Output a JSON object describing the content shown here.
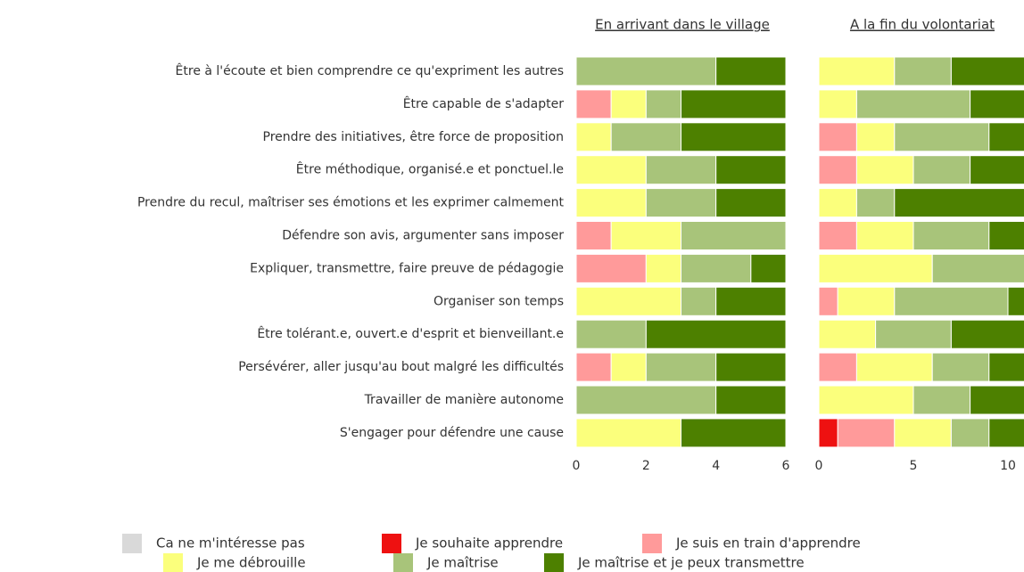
{
  "chart_data": [
    {
      "type": "bar",
      "orientation": "horizontal",
      "stacked": true,
      "title": "En arrivant dans le village",
      "categories": [
        "Être à l'écoute et bien comprendre ce qu'expriment les autres",
        "Être capable de s'adapter",
        "Prendre des initiatives, être force de proposition",
        "Être méthodique, organisé.e et ponctuel.le",
        "Prendre du recul, maîtriser ses émotions et les exprimer calmement",
        "Défendre son avis, argumenter sans imposer",
        "Expliquer, transmettre, faire preuve de pédagogie",
        "Organiser son temps",
        "Être tolérant.e, ouvert.e d'esprit et bienveillant.e",
        "Persévérer, aller jusqu'au bout malgré les difficultés",
        "Travailler de manière autonome",
        "S'engager pour défendre une cause"
      ],
      "xlim": [
        0,
        6
      ],
      "xticks": [
        0,
        2,
        4,
        6
      ],
      "series": [
        {
          "name": "Ca ne m'intéresse pas",
          "color": "#d9d9d9",
          "values": [
            0,
            0,
            0,
            0,
            0,
            0,
            0,
            0,
            0,
            0,
            0,
            0
          ]
        },
        {
          "name": "Je souhaite apprendre",
          "color": "#ee1111",
          "values": [
            0,
            0,
            0,
            0,
            0,
            0,
            0,
            0,
            0,
            0,
            0,
            0
          ]
        },
        {
          "name": "Je suis en train d'apprendre",
          "color": "#ff9a9a",
          "values": [
            0,
            1,
            0,
            0,
            0,
            1,
            2,
            0,
            0,
            1,
            0,
            0
          ]
        },
        {
          "name": "Je me débrouille",
          "color": "#fbff7c",
          "values": [
            0,
            1,
            1,
            2,
            2,
            2,
            1,
            3,
            0,
            1,
            0,
            3
          ]
        },
        {
          "name": "Je maîtrise",
          "color": "#a8c47a",
          "values": [
            4,
            1,
            2,
            2,
            2,
            3,
            2,
            1,
            2,
            2,
            4,
            0
          ]
        },
        {
          "name": "Je maîtrise et je peux transmettre",
          "color": "#4d8000",
          "values": [
            2,
            3,
            3,
            2,
            2,
            0,
            1,
            2,
            4,
            2,
            2,
            3
          ]
        }
      ]
    },
    {
      "type": "bar",
      "orientation": "horizontal",
      "stacked": true,
      "title": "A la fin du volontariat",
      "xlim": [
        0,
        11
      ],
      "xticks": [
        0,
        5,
        10
      ],
      "series": [
        {
          "color": "#d9d9d9",
          "values": [
            0,
            0,
            0,
            0,
            0,
            0,
            0,
            0,
            0,
            0,
            0,
            0
          ]
        },
        {
          "color": "#ee1111",
          "values": [
            0,
            0,
            0,
            0,
            0,
            0,
            0,
            0,
            0,
            0,
            0,
            1
          ]
        },
        {
          "color": "#ff9a9a",
          "values": [
            0,
            0,
            2,
            2,
            0,
            2,
            0,
            1,
            0,
            2,
            0,
            3
          ]
        },
        {
          "color": "#fbff7c",
          "values": [
            4,
            2,
            2,
            3,
            2,
            3,
            6,
            3,
            3,
            4,
            5,
            3
          ]
        },
        {
          "color": "#a8c47a",
          "values": [
            3,
            6,
            5,
            3,
            2,
            4,
            5,
            6,
            4,
            3,
            3,
            2
          ]
        },
        {
          "color": "#4d8000",
          "values": [
            4,
            3,
            2,
            3,
            7,
            2,
            0,
            1,
            4,
            2,
            3,
            2
          ]
        }
      ]
    }
  ]
}
